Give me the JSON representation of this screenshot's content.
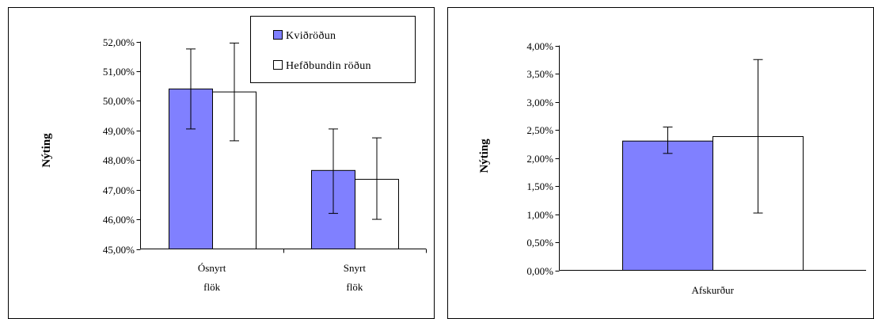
{
  "colors": {
    "series1_fill": "#8080ff",
    "series2_fill": "#ffffff",
    "stroke": "#000000",
    "frame": "#000000"
  },
  "chart_data": [
    {
      "type": "bar",
      "ylabel": "Nýting",
      "ylim": [
        45,
        52
      ],
      "y_ticks": [
        "45,00%",
        "46,00%",
        "47,00%",
        "48,00%",
        "49,00%",
        "50,00%",
        "51,00%",
        "52,00%"
      ],
      "categories": [
        [
          "Ósnyrt",
          "flök"
        ],
        [
          "Snyrt",
          "flök"
        ]
      ],
      "series": [
        {
          "name": "Kviðröðun",
          "values": [
            50.4,
            47.65
          ],
          "error_low": [
            49.05,
            46.2
          ],
          "error_high": [
            51.75,
            49.05
          ]
        },
        {
          "name": "Hefðbundin röðun",
          "values": [
            50.3,
            47.35
          ],
          "error_low": [
            48.65,
            46.0
          ],
          "error_high": [
            51.95,
            48.75
          ]
        }
      ],
      "legend_position": "top-right",
      "grid": false
    },
    {
      "type": "bar",
      "ylabel": "Nýting",
      "ylim": [
        0,
        4
      ],
      "y_ticks": [
        "0,00%",
        "0,50%",
        "1,00%",
        "1,50%",
        "2,00%",
        "2,50%",
        "3,00%",
        "3,50%",
        "4,00%"
      ],
      "categories": [
        [
          "Afskurður"
        ]
      ],
      "series": [
        {
          "name": "Kviðröðun",
          "values": [
            2.3
          ],
          "error_low": [
            2.08
          ],
          "error_high": [
            2.55
          ]
        },
        {
          "name": "Hefðbundin röðun",
          "values": [
            2.38
          ],
          "error_low": [
            1.02
          ],
          "error_high": [
            3.75
          ]
        }
      ],
      "legend_position": "none",
      "grid": false
    }
  ]
}
